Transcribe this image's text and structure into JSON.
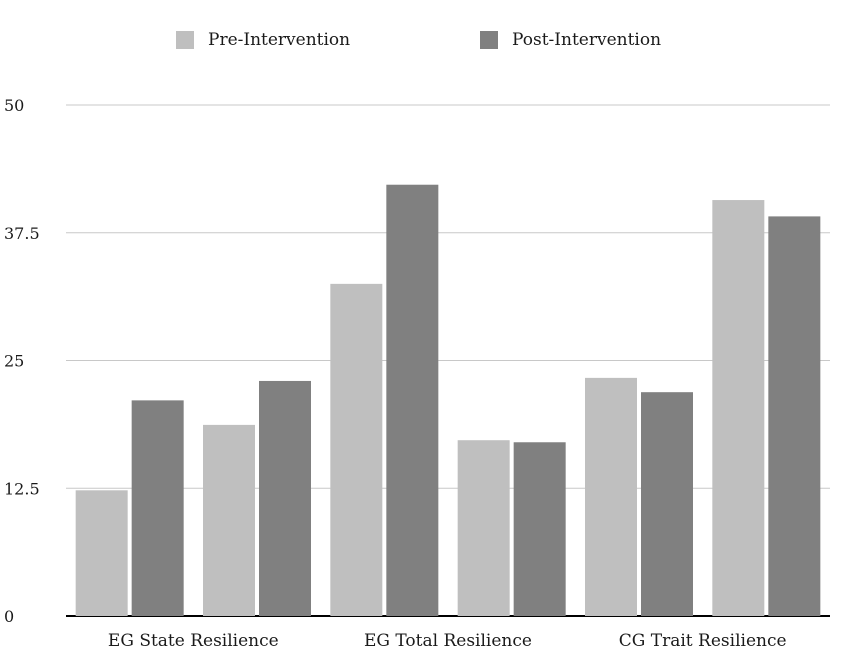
{
  "chart_data": {
    "type": "bar",
    "categories": [
      "EG State Resilience",
      "",
      "EG Total Resilience",
      "",
      "CG Trait Resilience",
      ""
    ],
    "x_tick_labels": [
      "EG State Resilience",
      "EG Total Resilience",
      "CG Trait Resilience"
    ],
    "series": [
      {
        "name": "Pre-Intervention",
        "color": "#bfbfbf",
        "values": [
          12.3,
          18.7,
          32.5,
          17.2,
          23.3,
          40.7
        ]
      },
      {
        "name": "Post-Intervention",
        "color": "#808080",
        "values": [
          21.1,
          23.0,
          42.2,
          17.0,
          21.9,
          39.1
        ]
      }
    ],
    "y_ticks": [
      "0",
      "12.5",
      "25",
      "37.5",
      "50"
    ],
    "ylim": [
      0,
      50
    ],
    "grid": true,
    "legend_position": "top-center",
    "title": "",
    "xlabel": "",
    "ylabel": ""
  }
}
